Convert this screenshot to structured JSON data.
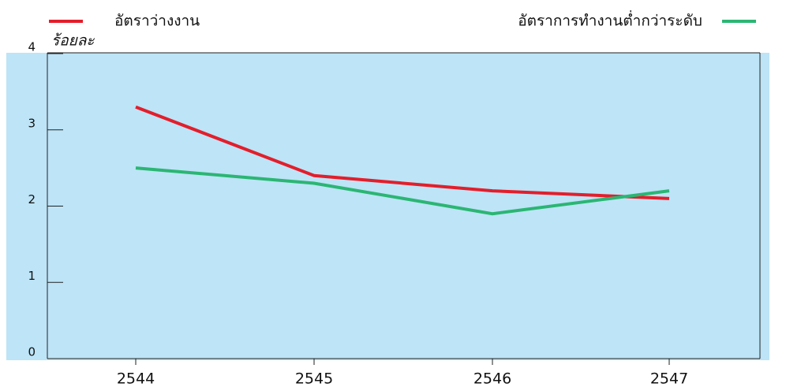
{
  "chart_data": {
    "type": "line",
    "y_axis_label": "ร้อยละ",
    "categories": [
      "2544",
      "2545",
      "2546",
      "2547"
    ],
    "series": [
      {
        "name": "อัตราว่างงาน",
        "color": "#e31e2b",
        "values": [
          3.3,
          2.4,
          2.2,
          2.1
        ]
      },
      {
        "name": "อัตราการทำงานต่ำกว่าระดับ",
        "color": "#2bb673",
        "values": [
          2.5,
          2.3,
          1.9,
          2.2
        ]
      }
    ],
    "ylim": [
      0,
      4
    ],
    "yticks": [
      0,
      1,
      2,
      3,
      4
    ],
    "background": "#bde4f7"
  }
}
